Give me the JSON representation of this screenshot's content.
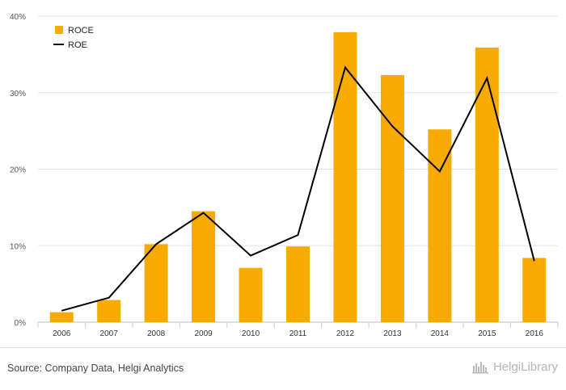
{
  "chart_data": {
    "type": "bar",
    "categories": [
      "2006",
      "2007",
      "2008",
      "2009",
      "2010",
      "2011",
      "2012",
      "2013",
      "2014",
      "2015",
      "2016"
    ],
    "series": [
      {
        "name": "ROCE",
        "kind": "bar",
        "color": "#f7ab00",
        "values": [
          1.3,
          2.9,
          10.2,
          14.5,
          7.1,
          9.9,
          37.9,
          32.3,
          25.2,
          35.9,
          8.4
        ]
      },
      {
        "name": "ROE",
        "kind": "line",
        "color": "#000000",
        "values": [
          1.5,
          3.2,
          10.2,
          14.3,
          8.7,
          11.4,
          33.3,
          25.6,
          19.7,
          31.9,
          8.0
        ]
      }
    ],
    "yticks": [
      0,
      10,
      20,
      30,
      40
    ],
    "ytick_labels": [
      "0%",
      "10%",
      "20%",
      "30%",
      "40%"
    ],
    "ylim": [
      0,
      40
    ],
    "legend_position": "top-left",
    "grid": "horizontal"
  },
  "footer": {
    "source": "Source: Company Data, Helgi Analytics",
    "brand": "HelgiLibrary"
  }
}
